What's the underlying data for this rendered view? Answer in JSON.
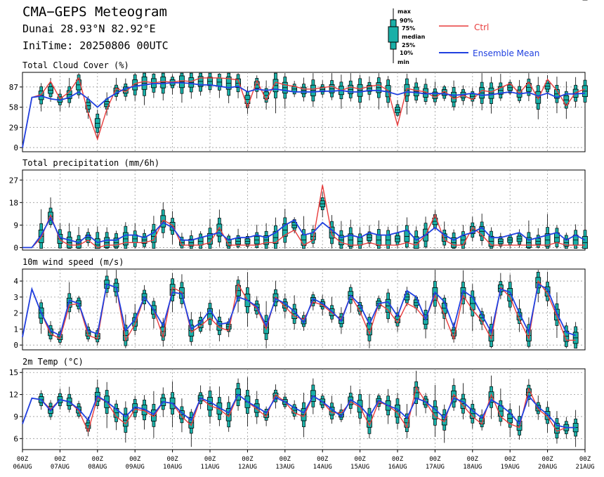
{
  "header": {
    "title": "CMA−GEPS Meteogram",
    "location": "Dunai 28.93°N 82.92°E",
    "init_time": "IniTime: 20250806 00UTC"
  },
  "legend": {
    "box_labels": [
      "max",
      "90%",
      "75%",
      "median",
      "25%",
      "10%",
      "min"
    ],
    "ctrl_label": "Ctrl",
    "mean_label": "Ensemble Mean",
    "ctrl_color": "#e83c3c",
    "mean_color": "#2040e0",
    "box_fill": "#1ab0a8"
  },
  "x_labels": [
    {
      "hour": "00Z",
      "date": "06AUG"
    },
    {
      "hour": "00Z",
      "date": "07AUG"
    },
    {
      "hour": "00Z",
      "date": "08AUG"
    },
    {
      "hour": "00Z",
      "date": "09AUG"
    },
    {
      "hour": "00Z",
      "date": "10AUG"
    },
    {
      "hour": "00Z",
      "date": "11AUG"
    },
    {
      "hour": "00Z",
      "date": "12AUG"
    },
    {
      "hour": "00Z",
      "date": "13AUG"
    },
    {
      "hour": "00Z",
      "date": "14AUG"
    },
    {
      "hour": "00Z",
      "date": "15AUG"
    },
    {
      "hour": "00Z",
      "date": "16AUG"
    },
    {
      "hour": "00Z",
      "date": "17AUG"
    },
    {
      "hour": "00Z",
      "date": "18AUG"
    },
    {
      "hour": "00Z",
      "date": "19AUG"
    },
    {
      "hour": "00Z",
      "date": "20AUG"
    },
    {
      "hour": "00Z",
      "date": "21AUG"
    }
  ],
  "chart_data": [
    {
      "type": "line",
      "title": "Total Cloud Cover (%)",
      "x_step_hours": 6,
      "ylim": [
        -6,
        108
      ],
      "yticks": [
        0,
        29,
        58,
        87
      ],
      "series": [
        {
          "name": "Ctrl",
          "values": [
            0,
            72,
            76,
            95,
            70,
            80,
            100,
            50,
            12,
            55,
            85,
            80,
            92,
            95,
            93,
            95,
            94,
            96,
            95,
            100,
            100,
            100,
            99,
            97,
            58,
            96,
            68,
            94,
            90,
            88,
            84,
            84,
            86,
            88,
            82,
            87,
            84,
            88,
            90,
            82,
            32,
            85,
            82,
            80,
            72,
            81,
            70,
            75,
            69,
            82,
            80,
            86,
            92,
            78,
            94,
            70,
            98,
            82,
            60,
            79,
            84
          ]
        },
        {
          "name": "Ensemble Mean",
          "values": [
            0,
            72,
            74,
            70,
            68,
            72,
            80,
            70,
            58,
            70,
            78,
            85,
            88,
            90,
            92,
            92,
            93,
            93,
            92,
            90,
            90,
            88,
            86,
            88,
            80,
            84,
            82,
            84,
            82,
            80,
            80,
            80,
            81,
            81,
            82,
            80,
            80,
            82,
            82,
            80,
            76,
            80,
            79,
            77,
            78,
            77,
            75,
            76,
            78,
            75,
            76,
            78,
            80,
            77,
            79,
            74,
            78,
            72,
            77,
            77,
            78
          ]
        }
      ]
    },
    {
      "type": "line",
      "title": "Total precipitation (mm/6h)",
      "x_step_hours": 6,
      "ylim": [
        -1,
        31
      ],
      "yticks": [
        0,
        9,
        18,
        27
      ],
      "series": [
        {
          "name": "Ctrl",
          "values": [
            0,
            0,
            4,
            13,
            3,
            1,
            1,
            3,
            0,
            1,
            1,
            2,
            2,
            2,
            3,
            11,
            9,
            1,
            1,
            1,
            2,
            8,
            1,
            1,
            1,
            1,
            2,
            2,
            5,
            7,
            1,
            3,
            25,
            5,
            2,
            1,
            1,
            2,
            1,
            1,
            1,
            2,
            1,
            5,
            13,
            3,
            1,
            1,
            8,
            5,
            1,
            1,
            1,
            1,
            1,
            1,
            1,
            2,
            1,
            1,
            1
          ]
        },
        {
          "name": "Ensemble Mean",
          "values": [
            0,
            0,
            5,
            12,
            4,
            3,
            2,
            5,
            2,
            3,
            3,
            5,
            5,
            4,
            6,
            10,
            8,
            3,
            3,
            4,
            5,
            6,
            3,
            4,
            4,
            5,
            4,
            6,
            9,
            11,
            5,
            6,
            10,
            7,
            4,
            5,
            4,
            6,
            5,
            5,
            6,
            7,
            3,
            5,
            8,
            5,
            3,
            5,
            6,
            8,
            4,
            4,
            5,
            6,
            3,
            4,
            5,
            6,
            3,
            5,
            3
          ]
        }
      ]
    },
    {
      "type": "line",
      "title": "10m wind speed (m/s)",
      "x_step_hours": 6,
      "ylim": [
        -0.3,
        4.75
      ],
      "yticks": [
        0,
        1,
        2,
        3,
        4
      ],
      "series": [
        {
          "name": "Ctrl",
          "values": [
            0.5,
            3.5,
            2.0,
            0.7,
            0.4,
            2.5,
            2.6,
            0.6,
            0.4,
            3.8,
            3.6,
            0.3,
            1.3,
            3.0,
            2.2,
            0.5,
            3.6,
            3.3,
            0.8,
            1.2,
            1.7,
            1.1,
            0.9,
            3.8,
            2.8,
            2.3,
            1.0,
            3.0,
            2.4,
            1.8,
            1.6,
            2.7,
            2.5,
            2.0,
            1.6,
            3.1,
            2.1,
            0.7,
            2.6,
            2.2,
            1.4,
            2.6,
            2.3,
            1.6,
            3.1,
            1.9,
            0.4,
            3.1,
            2.2,
            1.5,
            0.4,
            3.6,
            3.0,
            1.6,
            0.4,
            4.0,
            3.2,
            1.8,
            0.3,
            0.3
          ]
        },
        {
          "name": "Ensemble Mean",
          "values": [
            0.5,
            3.5,
            2.0,
            0.9,
            0.6,
            2.8,
            2.6,
            0.9,
            0.7,
            3.8,
            3.6,
            0.9,
            1.6,
            3.0,
            2.2,
            1.2,
            3.3,
            3.2,
            1.0,
            1.4,
            2.2,
            1.3,
            1.4,
            3.0,
            2.8,
            2.4,
            1.2,
            2.9,
            2.6,
            2.1,
            1.4,
            2.9,
            2.6,
            2.1,
            1.5,
            3.1,
            2.5,
            1.3,
            2.6,
            2.7,
            1.8,
            3.4,
            3.0,
            1.6,
            3.3,
            2.7,
            1.1,
            3.4,
            3.0,
            1.9,
            0.8,
            3.5,
            3.3,
            2.0,
            0.8,
            3.8,
            3.5,
            2.0,
            0.8,
            0.6
          ]
        }
      ]
    },
    {
      "type": "line",
      "title": "2m Temp (°C)",
      "x_step_hours": 6,
      "ylim": [
        4.5,
        15.5
      ],
      "yticks": [
        6,
        9,
        12,
        15
      ],
      "series": [
        {
          "name": "Ctrl",
          "values": [
            8,
            11.5,
            11.3,
            10,
            11.3,
            11,
            9.8,
            7,
            11.6,
            11,
            9,
            8,
            10,
            9.8,
            9,
            11,
            10.8,
            9,
            7.8,
            11.5,
            10.5,
            10,
            9,
            12,
            11,
            10,
            9,
            12,
            11,
            9.5,
            9,
            11.8,
            11,
            9.5,
            9.5,
            11,
            10.3,
            7.8,
            11,
            10.5,
            9.5,
            7.5,
            13,
            11,
            9,
            8.3,
            12,
            10.5,
            9,
            8,
            12,
            9,
            8,
            7.5,
            12.8,
            10,
            9,
            7,
            7.5,
            7.5
          ]
        },
        {
          "name": "Ensemble Mean",
          "values": [
            8,
            11.5,
            11.3,
            9.8,
            11.3,
            11,
            10,
            8.5,
            11.8,
            11,
            10,
            9,
            10.3,
            10,
            9.3,
            11,
            10.8,
            9.5,
            8.5,
            11.5,
            11,
            10.2,
            9.5,
            12,
            11,
            10.3,
            9.5,
            11.6,
            11,
            10.2,
            9.5,
            11.8,
            11,
            10,
            9,
            11.3,
            10.5,
            9,
            11.2,
            10.5,
            10,
            8.8,
            11.5,
            11,
            10,
            8.8,
            11.5,
            11,
            9.8,
            8.8,
            11.3,
            10.5,
            9.5,
            8,
            11.8,
            10.3,
            9.3,
            7.8,
            7.5,
            7.5
          ]
        }
      ]
    }
  ]
}
